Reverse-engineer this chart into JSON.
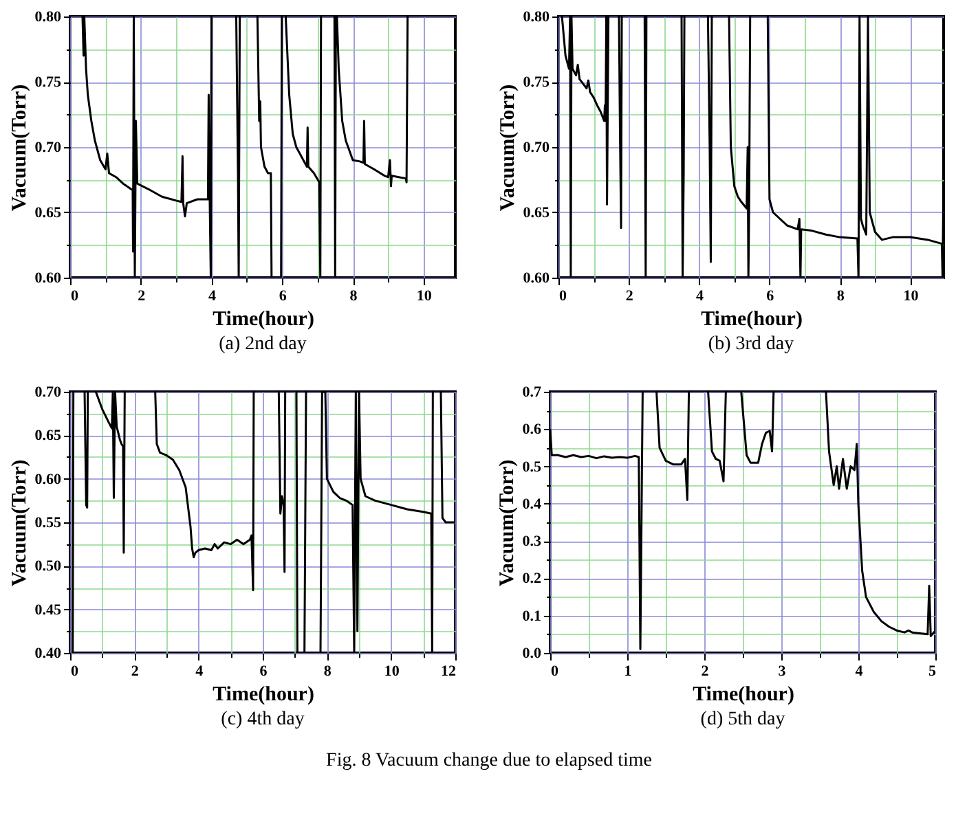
{
  "chart_data": [
    {
      "type": "line",
      "xlabel": "Time(hour)",
      "ylabel": "Vacuum(Torr)",
      "annotations": [
        "(a)  2nd  day"
      ],
      "grid": true,
      "xlim": [
        0,
        10.9
      ],
      "ylim": [
        0.6,
        0.8
      ],
      "xticks": [
        0,
        {
          "value": 1,
          "label": null
        },
        2,
        {
          "value": 3,
          "label": null
        },
        4,
        {
          "value": 5,
          "label": null
        },
        6,
        {
          "value": 7,
          "label": null
        },
        8,
        {
          "value": 9,
          "label": null
        },
        10
      ],
      "yticks": [
        {
          "value": 0.6,
          "label": "0.60"
        },
        {
          "value": 0.625,
          "label": null
        },
        {
          "value": 0.65,
          "label": "0.65"
        },
        {
          "value": 0.675,
          "label": null
        },
        {
          "value": 0.7,
          "label": "0.70"
        },
        {
          "value": 0.725,
          "label": null
        },
        {
          "value": 0.75,
          "label": "0.75"
        },
        {
          "value": 0.775,
          "label": null
        },
        {
          "value": 0.8,
          "label": "0.80"
        }
      ],
      "series": [
        {
          "color": "#000000",
          "x": [
            0.35,
            0.38,
            0.4,
            0.45,
            0.5,
            0.6,
            0.7,
            0.85,
            1.0,
            1.05,
            1.1,
            1.3,
            1.5,
            1.77,
            1.78,
            1.8,
            1.83,
            1.86,
            1.9,
            2.2,
            2.6,
            3.0,
            3.15,
            3.18,
            3.2,
            3.25,
            3.3,
            3.6,
            3.9,
            3.92,
            3.95,
            3.98,
            4.0,
            4.3,
            4.7,
            4.75,
            4.77,
            4.8,
            5.0,
            5.3,
            5.35,
            5.38,
            5.4,
            5.5,
            5.6,
            5.68,
            5.7,
            5.8,
            5.97,
            5.99,
            6.05,
            6.1,
            6.2,
            6.3,
            6.4,
            6.6,
            6.7,
            6.72,
            6.74,
            6.9,
            7.05,
            7.08,
            7.1,
            7.3,
            7.48,
            7.5,
            7.52,
            7.55,
            7.6,
            7.7,
            7.8,
            8.0,
            8.2,
            8.3,
            8.32,
            8.34,
            8.6,
            8.9,
            9.0,
            9.05,
            9.08,
            9.1,
            9.3,
            9.5,
            9.52,
            9.55
          ],
          "values": [
            0.8,
            0.77,
            0.8,
            0.76,
            0.74,
            0.72,
            0.705,
            0.69,
            0.683,
            0.695,
            0.68,
            0.677,
            0.672,
            0.667,
            0.62,
            0.8,
            0.6,
            0.72,
            0.672,
            0.668,
            0.662,
            0.659,
            0.658,
            0.693,
            0.657,
            0.647,
            0.657,
            0.66,
            0.66,
            0.74,
            0.66,
            0.6,
            0.8,
            null,
            0.8,
            0.68,
            0.6,
            0.8,
            null,
            0.8,
            0.72,
            0.735,
            0.7,
            0.685,
            0.68,
            0.68,
            0.6,
            null,
            0.6,
            0.8,
            null,
            0.8,
            0.74,
            0.71,
            0.7,
            0.69,
            0.685,
            0.715,
            0.685,
            0.68,
            0.673,
            0.6,
            0.8,
            null,
            0.8,
            0.6,
            0.8,
            0.8,
            0.76,
            0.72,
            0.705,
            0.69,
            0.689,
            0.688,
            0.72,
            0.687,
            0.683,
            0.678,
            0.677,
            0.69,
            0.67,
            0.678,
            0.677,
            0.676,
            0.673,
            0.8
          ]
        }
      ]
    },
    {
      "type": "line",
      "xlabel": "Time(hour)",
      "ylabel": "Vacuum(Torr)",
      "annotations": [
        "(b)  3rd  day"
      ],
      "grid": true,
      "xlim": [
        0,
        10.95
      ],
      "ylim": [
        0.6,
        0.8
      ],
      "xticks": [
        0,
        {
          "value": 1,
          "label": null
        },
        2,
        {
          "value": 3,
          "label": null
        },
        4,
        {
          "value": 5,
          "label": null
        },
        6,
        {
          "value": 7,
          "label": null
        },
        8,
        {
          "value": 9,
          "label": null
        },
        10
      ],
      "yticks": [
        {
          "value": 0.6,
          "label": "0.60"
        },
        {
          "value": 0.625,
          "label": null
        },
        {
          "value": 0.65,
          "label": "0.65"
        },
        {
          "value": 0.675,
          "label": null
        },
        {
          "value": 0.7,
          "label": "0.70"
        },
        {
          "value": 0.725,
          "label": null
        },
        {
          "value": 0.75,
          "label": "0.75"
        },
        {
          "value": 0.775,
          "label": null
        },
        {
          "value": 0.8,
          "label": "0.80"
        }
      ],
      "series": [
        {
          "color": "#000000",
          "x": [
            0.1,
            0.2,
            0.3,
            0.33,
            0.35,
            0.37,
            0.4,
            0.5,
            0.55,
            0.6,
            0.8,
            0.85,
            0.9,
            1.0,
            1.1,
            1.2,
            1.3,
            1.32,
            1.34,
            1.36,
            1.38,
            1.42,
            1.6,
            1.72,
            1.75,
            1.78,
            1.8,
            2.1,
            2.45,
            2.48,
            2.5,
            3.0,
            3.5,
            3.53,
            3.56,
            3.58,
            4.0,
            4.25,
            4.3,
            4.33,
            4.36,
            4.6,
            4.85,
            4.9,
            5.0,
            5.1,
            5.2,
            5.35,
            5.38,
            5.4,
            5.42,
            5.45,
            5.7,
            5.95,
            6.0,
            6.1,
            6.3,
            6.5,
            6.8,
            6.85,
            6.88,
            6.9,
            7.2,
            7.6,
            8.0,
            8.5,
            8.53,
            8.56,
            8.6,
            8.65,
            8.75,
            8.8,
            8.85,
            9.0,
            9.2,
            9.5,
            10.0,
            10.5,
            10.9,
            10.92,
            10.94
          ],
          "values": [
            0.8,
            0.77,
            0.76,
            0.8,
            0.6,
            0.8,
            0.76,
            0.755,
            0.763,
            0.752,
            0.745,
            0.751,
            0.742,
            0.738,
            0.732,
            0.727,
            0.72,
            0.732,
            0.72,
            0.8,
            0.656,
            0.8,
            null,
            0.8,
            0.71,
            0.638,
            0.8,
            null,
            0.8,
            0.6,
            0.8,
            null,
            0.8,
            0.6,
            0.68,
            0.8,
            null,
            0.8,
            0.7,
            0.612,
            0.8,
            null,
            0.8,
            0.7,
            0.67,
            0.662,
            0.658,
            0.653,
            0.7,
            0.6,
            0.65,
            0.8,
            null,
            0.8,
            0.66,
            0.65,
            0.645,
            0.64,
            0.637,
            0.645,
            0.6,
            0.637,
            0.636,
            0.633,
            0.631,
            0.63,
            0.6,
            0.8,
            0.645,
            0.64,
            0.633,
            0.8,
            0.65,
            0.635,
            0.629,
            0.631,
            0.631,
            0.629,
            0.626,
            0.6,
            0.655
          ]
        }
      ]
    },
    {
      "type": "line",
      "xlabel": "Time(hour)",
      "ylabel": "Vacuum(Torr)",
      "annotations": [
        "(c)  4th  day"
      ],
      "grid": true,
      "xlim": [
        0,
        12
      ],
      "ylim": [
        0.4,
        0.7
      ],
      "xticks": [
        0,
        {
          "value": 1,
          "label": null
        },
        2,
        {
          "value": 3,
          "label": null
        },
        4,
        {
          "value": 5,
          "label": null
        },
        6,
        {
          "value": 7,
          "label": null
        },
        8,
        {
          "value": 9,
          "label": null
        },
        10,
        {
          "value": 11,
          "label": null
        },
        12
      ],
      "yticks": [
        {
          "value": 0.4,
          "label": "0.40"
        },
        {
          "value": 0.425,
          "label": null
        },
        {
          "value": 0.45,
          "label": "0.45"
        },
        {
          "value": 0.475,
          "label": null
        },
        {
          "value": 0.5,
          "label": "0.50"
        },
        {
          "value": 0.525,
          "label": null
        },
        {
          "value": 0.55,
          "label": "0.55"
        },
        {
          "value": 0.575,
          "label": null
        },
        {
          "value": 0.6,
          "label": "0.60"
        },
        {
          "value": 0.625,
          "label": null
        },
        {
          "value": 0.65,
          "label": "0.65"
        },
        {
          "value": 0.675,
          "label": null
        },
        {
          "value": 0.7,
          "label": "0.70"
        }
      ],
      "series": [
        {
          "color": "#000000",
          "x": [
            0.08,
            0.1,
            0.2,
            0.45,
            0.5,
            0.53,
            0.55,
            0.7,
            0.8,
            0.9,
            1.0,
            1.2,
            1.3,
            1.33,
            1.36,
            1.4,
            1.45,
            1.55,
            1.6,
            1.65,
            1.67,
            1.7,
            2.2,
            2.65,
            2.7,
            2.8,
            3.0,
            3.2,
            3.4,
            3.6,
            3.7,
            3.75,
            3.8,
            3.85,
            3.9,
            4.0,
            4.2,
            4.4,
            4.5,
            4.6,
            4.8,
            5.0,
            5.2,
            5.4,
            5.6,
            5.65,
            5.7,
            5.72,
            6.1,
            6.5,
            6.55,
            6.6,
            6.65,
            6.68,
            6.7,
            6.9,
            7.05,
            7.08,
            7.2,
            7.3,
            7.35,
            7.6,
            7.8,
            7.85,
            7.95,
            8.0,
            8.2,
            8.4,
            8.6,
            8.8,
            8.85,
            8.9,
            8.95,
            9.0,
            9.05,
            9.2,
            9.5,
            10.0,
            10.5,
            11.0,
            11.25,
            11.28,
            11.3,
            11.45,
            11.55,
            11.6,
            11.7,
            12.0
          ],
          "values": [
            0.4,
            0.7,
            null,
            0.7,
            0.57,
            0.567,
            0.7,
            null,
            0.7,
            0.69,
            0.68,
            0.665,
            0.658,
            0.7,
            0.578,
            0.7,
            0.66,
            0.645,
            0.64,
            0.637,
            0.515,
            0.7,
            null,
            0.7,
            0.64,
            0.63,
            0.627,
            0.622,
            0.61,
            0.59,
            0.56,
            0.545,
            0.52,
            0.51,
            0.515,
            0.518,
            0.52,
            0.518,
            0.525,
            0.52,
            0.527,
            0.525,
            0.53,
            0.525,
            0.53,
            0.535,
            0.472,
            0.7,
            null,
            0.7,
            0.56,
            0.58,
            0.57,
            0.493,
            0.7,
            null,
            0.7,
            0.4,
            null,
            0.4,
            0.7,
            null,
            0.4,
            0.7,
            0.7,
            0.6,
            0.585,
            0.578,
            0.575,
            0.57,
            0.4,
            0.7,
            0.425,
            0.7,
            0.6,
            0.58,
            0.575,
            0.57,
            0.565,
            0.562,
            0.56,
            0.4,
            0.7,
            null,
            0.7,
            0.555,
            0.55,
            0.55
          ]
        }
      ]
    },
    {
      "type": "line",
      "xlabel": "Time(hour)",
      "ylabel": "Vacuum(Torr)",
      "annotations": [
        "(d)  5th  day",
        "Fig. 8 Vacuum change due to elapsed time"
      ],
      "grid": true,
      "xlim": [
        0,
        5
      ],
      "ylim": [
        0,
        0.7
      ],
      "xticks": [
        0,
        {
          "value": 0.5,
          "label": null
        },
        1,
        {
          "value": 1.5,
          "label": null
        },
        2,
        {
          "value": 2.5,
          "label": null
        },
        3,
        {
          "value": 3.5,
          "label": null
        },
        4,
        {
          "value": 4.5,
          "label": null
        },
        5
      ],
      "yticks": [
        {
          "value": 0,
          "label": "0.0"
        },
        {
          "value": 0.05,
          "label": null
        },
        0.1,
        {
          "value": 0.15,
          "label": null
        },
        0.2,
        {
          "value": 0.25,
          "label": null
        },
        0.3,
        {
          "value": 0.35,
          "label": null
        },
        0.4,
        {
          "value": 0.45,
          "label": null
        },
        0.5,
        {
          "value": 0.55,
          "label": null
        },
        0.6,
        {
          "value": 0.65,
          "label": null
        },
        0.7
      ],
      "series": [
        {
          "color": "#000000",
          "x": [
            0.0,
            0.02,
            0.1,
            0.2,
            0.3,
            0.4,
            0.5,
            0.6,
            0.7,
            0.8,
            0.9,
            1.0,
            1.1,
            1.15,
            1.17,
            1.2,
            1.3,
            1.38,
            1.42,
            1.5,
            1.6,
            1.7,
            1.75,
            1.78,
            1.8,
            1.9,
            2.05,
            2.1,
            2.15,
            2.2,
            2.25,
            2.28,
            2.4,
            2.48,
            2.55,
            2.6,
            2.7,
            2.75,
            2.8,
            2.85,
            2.88,
            2.9,
            3.2,
            3.58,
            3.62,
            3.68,
            3.72,
            3.75,
            3.8,
            3.85,
            3.9,
            3.95,
            3.98,
            4.0,
            4.05,
            4.1,
            4.2,
            4.3,
            4.4,
            4.5,
            4.6,
            4.65,
            4.7,
            4.9,
            4.92,
            4.94,
            5.0
          ],
          "values": [
            0.6,
            0.53,
            0.53,
            0.525,
            0.53,
            0.525,
            0.528,
            0.522,
            0.527,
            0.523,
            0.525,
            0.523,
            0.528,
            0.525,
            0.01,
            0.7,
            null,
            0.7,
            0.55,
            0.515,
            0.505,
            0.505,
            0.52,
            0.41,
            0.7,
            null,
            0.7,
            0.54,
            0.52,
            0.515,
            0.46,
            0.7,
            null,
            0.7,
            0.53,
            0.51,
            0.51,
            0.56,
            0.59,
            0.595,
            0.54,
            0.7,
            null,
            0.7,
            0.54,
            0.45,
            0.5,
            0.44,
            0.52,
            0.44,
            0.5,
            0.49,
            0.56,
            0.4,
            0.22,
            0.15,
            0.11,
            0.085,
            0.07,
            0.06,
            0.055,
            0.06,
            0.055,
            0.05,
            0.18,
            0.045,
            0.06
          ]
        }
      ]
    }
  ]
}
